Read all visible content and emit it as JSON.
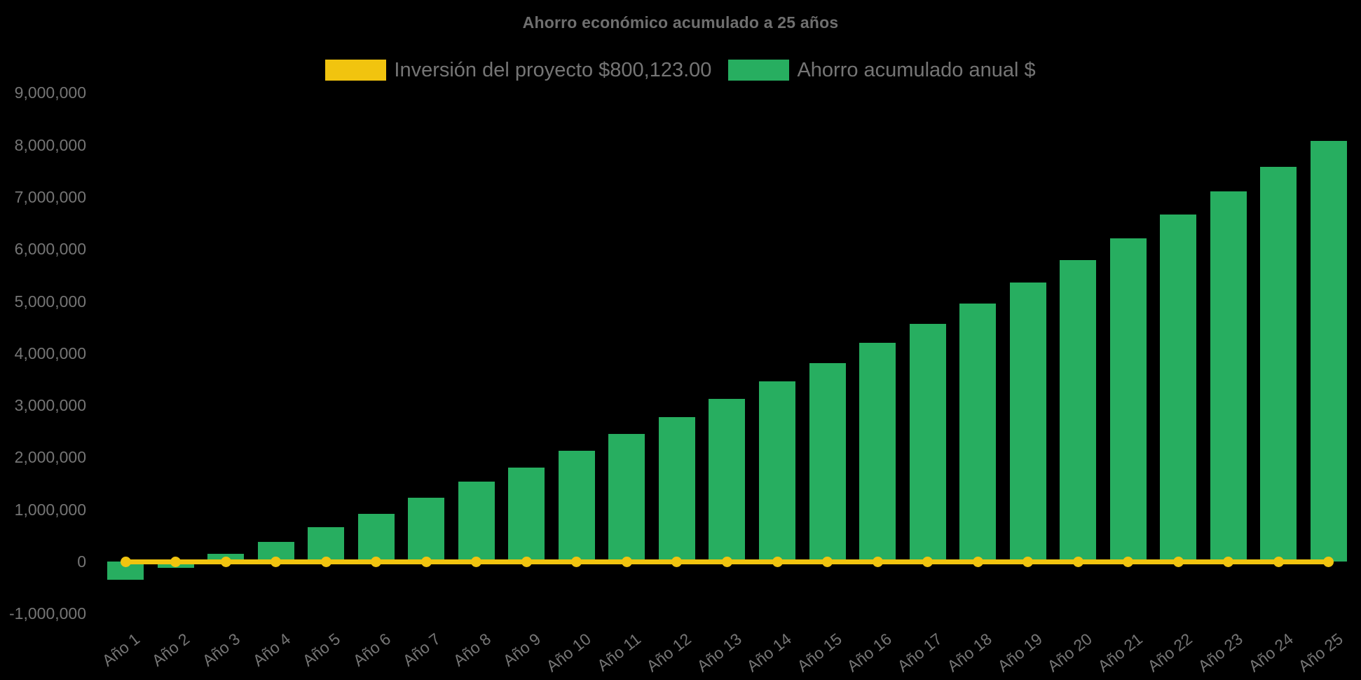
{
  "title": "Ahorro económico acumulado a 25 años",
  "legend": [
    {
      "label": "Inversión del proyecto $800,123.00",
      "color": "#f1c40f"
    },
    {
      "label": "Ahorro acumulado anual $",
      "color": "#27ae60"
    }
  ],
  "chart_data": {
    "type": "bar",
    "title": "Ahorro económico acumulado a 25 años",
    "categories": [
      "Año 1",
      "Año 2",
      "Año 3",
      "Año 4",
      "Año 5",
      "Año 6",
      "Año 7",
      "Año 8",
      "Año 9",
      "Año 10",
      "Año 11",
      "Año 12",
      "Año 13",
      "Año 14",
      "Año 15",
      "Año 16",
      "Año 17",
      "Año 18",
      "Año 19",
      "Año 20",
      "Año 21",
      "Año 22",
      "Año 23",
      "Año 24",
      "Año 25"
    ],
    "series": [
      {
        "name": "Inversión del proyecto $800,123.00",
        "type": "line",
        "color": "#f1c40f",
        "marker": "circle",
        "constant_value": 0
      },
      {
        "name": "Ahorro acumulado anual $",
        "type": "bar",
        "color": "#27ae60",
        "values": [
          -350000,
          -120000,
          150000,
          380000,
          660000,
          920000,
          1220000,
          1530000,
          1810000,
          2130000,
          2450000,
          2770000,
          3120000,
          3460000,
          3810000,
          4200000,
          4560000,
          4950000,
          5360000,
          5790000,
          6210000,
          6660000,
          7100000,
          7580000,
          8070000
        ]
      }
    ],
    "xlabel": "",
    "ylabel": "",
    "ylim": [
      -1000000,
      9000000
    ],
    "yticks": [
      9000000,
      8000000,
      7000000,
      6000000,
      5000000,
      4000000,
      3000000,
      2000000,
      1000000,
      0,
      -1000000
    ],
    "grid": false,
    "legend_position": "top",
    "background": "#000000",
    "text_color": "#757575"
  }
}
